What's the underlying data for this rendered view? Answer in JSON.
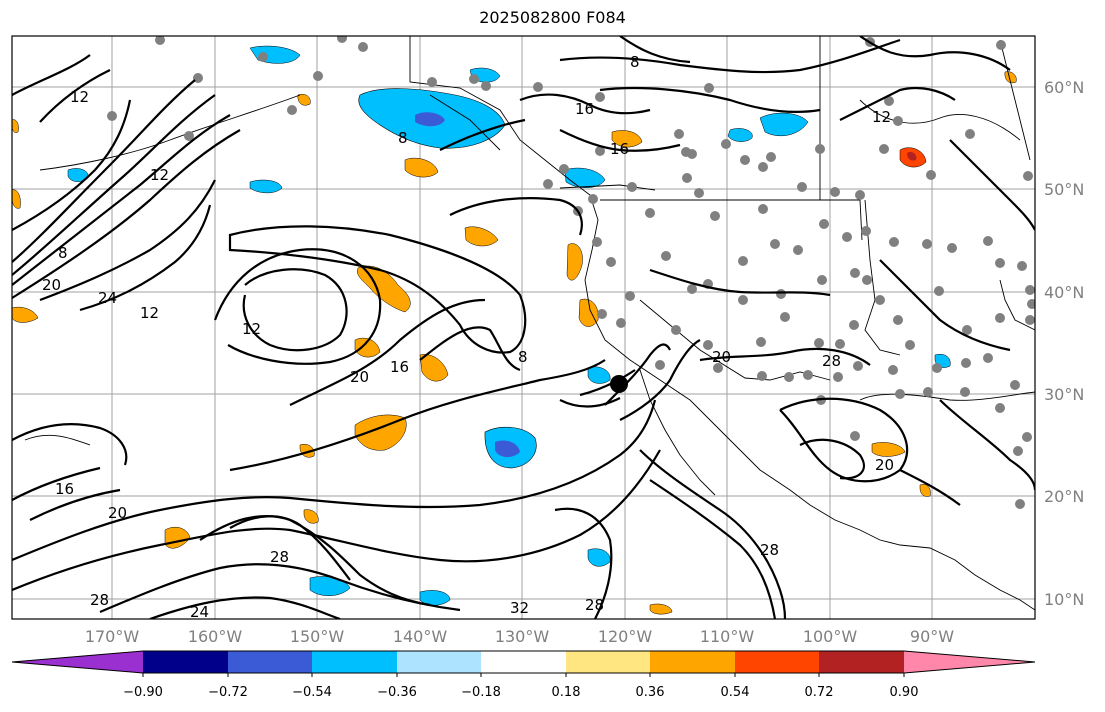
{
  "title": "2025082800 F084",
  "lon_ticks": [
    "170°W",
    "160°W",
    "150°W",
    "140°W",
    "130°W",
    "120°W",
    "110°W",
    "100°W",
    "90°W"
  ],
  "lat_ticks": [
    "60°N",
    "50°N",
    "40°N",
    "30°N",
    "20°N",
    "10°N"
  ],
  "contour_labels": [
    "8",
    "8",
    "8",
    "8",
    "12",
    "12",
    "12",
    "12",
    "12",
    "16",
    "16",
    "16",
    "16",
    "20",
    "20",
    "20",
    "20",
    "20",
    "24",
    "24",
    "28",
    "28",
    "28",
    "28",
    "28",
    "32"
  ],
  "colorbar": {
    "tick_labels": [
      "−0.90",
      "−0.72",
      "−0.54",
      "−0.36",
      "−0.18",
      "0.18",
      "0.36",
      "0.54",
      "0.72",
      "0.90"
    ],
    "colors": [
      "#9b30d0",
      "#00008b",
      "#3b5bd6",
      "#00bfff",
      "#aee3ff",
      "#ffffff",
      "#ffe680",
      "#ffa500",
      "#ff4500",
      "#b22222",
      "#ff88aa"
    ]
  }
}
